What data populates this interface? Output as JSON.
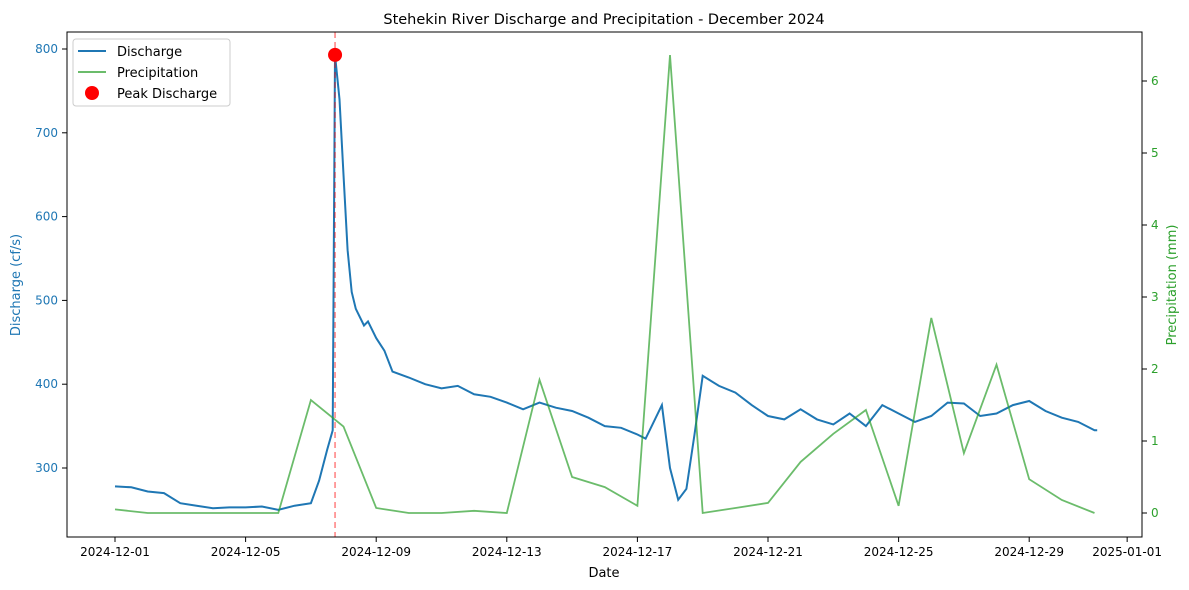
{
  "chart_data": {
    "type": "line",
    "title": "Stehekin River Discharge and Precipitation - December 2024",
    "xlabel": "Date",
    "ylabel_left": "Discharge (cf/s)",
    "ylabel_right": "Precipitation (mm)",
    "x_ticks": [
      "2024-12-01",
      "2024-12-05",
      "2024-12-09",
      "2024-12-13",
      "2024-12-17",
      "2024-12-21",
      "2024-12-25",
      "2024-12-29",
      "2025-01-01"
    ],
    "y_left_ticks": [
      300,
      400,
      500,
      600,
      700,
      800
    ],
    "y_right_ticks": [
      0,
      1,
      2,
      3,
      4,
      5,
      6
    ],
    "legend_placement": "top-left",
    "colors": {
      "discharge": "#1f77b4",
      "precipitation": "#2ca02c",
      "peak": "#ff0000",
      "peak_line": "#ff0000",
      "left_axis": "#1f77b4",
      "right_axis": "#2ca02c"
    },
    "legend": [
      "Discharge",
      "Precipitation",
      "Peak Discharge"
    ],
    "peak": {
      "date": "2024-12-07T17:45",
      "value": 793
    },
    "discharge": [
      [
        "2024-12-01T00:00",
        278
      ],
      [
        "2024-12-01T12:00",
        277
      ],
      [
        "2024-12-02T00:00",
        272
      ],
      [
        "2024-12-02T12:00",
        270
      ],
      [
        "2024-12-03T00:00",
        258
      ],
      [
        "2024-12-03T12:00",
        255
      ],
      [
        "2024-12-04T00:00",
        252
      ],
      [
        "2024-12-04T12:00",
        253
      ],
      [
        "2024-12-05T00:00",
        253
      ],
      [
        "2024-12-05T12:00",
        254
      ],
      [
        "2024-12-06T00:00",
        250
      ],
      [
        "2024-12-06T12:00",
        255
      ],
      [
        "2024-12-07T00:00",
        258
      ],
      [
        "2024-12-07T06:00",
        285
      ],
      [
        "2024-12-07T12:00",
        322
      ],
      [
        "2024-12-07T16:00",
        345
      ],
      [
        "2024-12-07T17:45",
        793
      ],
      [
        "2024-12-07T21:00",
        740
      ],
      [
        "2024-12-08T00:00",
        650
      ],
      [
        "2024-12-08T03:00",
        560
      ],
      [
        "2024-12-08T06:00",
        510
      ],
      [
        "2024-12-08T09:00",
        490
      ],
      [
        "2024-12-08T15:00",
        470
      ],
      [
        "2024-12-08T18:00",
        475
      ],
      [
        "2024-12-09T00:00",
        455
      ],
      [
        "2024-12-09T06:00",
        440
      ],
      [
        "2024-12-09T12:00",
        415
      ],
      [
        "2024-12-10T00:00",
        408
      ],
      [
        "2024-12-10T12:00",
        400
      ],
      [
        "2024-12-11T00:00",
        395
      ],
      [
        "2024-12-11T12:00",
        398
      ],
      [
        "2024-12-12T00:00",
        388
      ],
      [
        "2024-12-12T12:00",
        385
      ],
      [
        "2024-12-13T00:00",
        378
      ],
      [
        "2024-12-13T12:00",
        370
      ],
      [
        "2024-12-14T00:00",
        378
      ],
      [
        "2024-12-14T12:00",
        372
      ],
      [
        "2024-12-15T00:00",
        368
      ],
      [
        "2024-12-15T12:00",
        360
      ],
      [
        "2024-12-16T00:00",
        350
      ],
      [
        "2024-12-16T12:00",
        348
      ],
      [
        "2024-12-17T00:00",
        340
      ],
      [
        "2024-12-17T06:00",
        335
      ],
      [
        "2024-12-17T18:00",
        375
      ],
      [
        "2024-12-18T00:00",
        300
      ],
      [
        "2024-12-18T06:00",
        262
      ],
      [
        "2024-12-18T12:00",
        275
      ],
      [
        "2024-12-18T18:00",
        340
      ],
      [
        "2024-12-19T00:00",
        410
      ],
      [
        "2024-12-19T12:00",
        398
      ],
      [
        "2024-12-20T00:00",
        390
      ],
      [
        "2024-12-20T12:00",
        375
      ],
      [
        "2024-12-21T00:00",
        362
      ],
      [
        "2024-12-21T12:00",
        358
      ],
      [
        "2024-12-22T00:00",
        370
      ],
      [
        "2024-12-22T12:00",
        358
      ],
      [
        "2024-12-23T00:00",
        352
      ],
      [
        "2024-12-23T12:00",
        365
      ],
      [
        "2024-12-24T00:00",
        350
      ],
      [
        "2024-12-24T12:00",
        375
      ],
      [
        "2024-12-25T00:00",
        365
      ],
      [
        "2024-12-25T12:00",
        355
      ],
      [
        "2024-12-26T00:00",
        362
      ],
      [
        "2024-12-26T12:00",
        378
      ],
      [
        "2024-12-27T00:00",
        377
      ],
      [
        "2024-12-27T12:00",
        362
      ],
      [
        "2024-12-28T00:00",
        365
      ],
      [
        "2024-12-28T12:00",
        375
      ],
      [
        "2024-12-29T00:00",
        380
      ],
      [
        "2024-12-29T12:00",
        368
      ],
      [
        "2024-12-30T00:00",
        360
      ],
      [
        "2024-12-30T12:00",
        355
      ],
      [
        "2024-12-31T00:00",
        345
      ],
      [
        "2024-12-31T02:00",
        345
      ]
    ],
    "precipitation": [
      [
        "2024-12-01",
        0.05
      ],
      [
        "2024-12-02",
        0
      ],
      [
        "2024-12-03",
        0
      ],
      [
        "2024-12-04",
        0
      ],
      [
        "2024-12-05",
        0
      ],
      [
        "2024-12-06",
        0
      ],
      [
        "2024-12-07",
        1.57
      ],
      [
        "2024-12-08",
        1.2
      ],
      [
        "2024-12-09",
        0.07
      ],
      [
        "2024-12-10",
        0
      ],
      [
        "2024-12-11",
        0
      ],
      [
        "2024-12-12",
        0.03
      ],
      [
        "2024-12-13",
        0
      ],
      [
        "2024-12-14",
        1.85
      ],
      [
        "2024-12-15",
        0.5
      ],
      [
        "2024-12-16",
        0.36
      ],
      [
        "2024-12-17",
        0.1
      ],
      [
        "2024-12-18",
        6.36
      ],
      [
        "2024-12-19",
        0
      ],
      [
        "2024-12-20",
        0.07
      ],
      [
        "2024-12-21",
        0.14
      ],
      [
        "2024-12-22",
        0.71
      ],
      [
        "2024-12-23",
        1.1
      ],
      [
        "2024-12-24",
        1.43
      ],
      [
        "2024-12-25",
        0.1
      ],
      [
        "2024-12-26",
        2.71
      ],
      [
        "2024-12-27",
        0.83
      ],
      [
        "2024-12-28",
        2.06
      ],
      [
        "2024-12-29",
        0.47
      ],
      [
        "2024-12-30",
        0.18
      ],
      [
        "2024-12-31",
        0
      ]
    ]
  }
}
